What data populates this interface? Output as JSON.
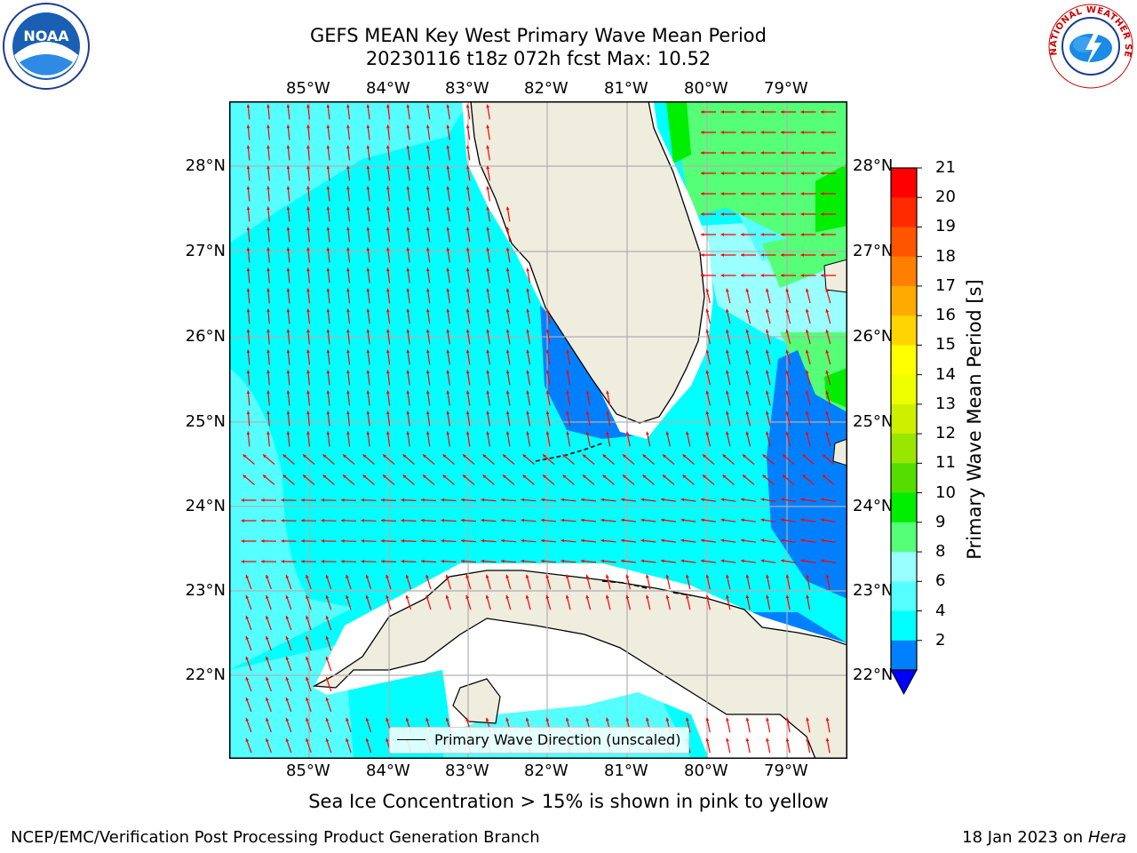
{
  "title": {
    "line1": "GEFS MEAN Key West Primary Wave Mean Period",
    "line2": "20230116 t18z 072h fcst   Max: 10.52"
  },
  "map": {
    "lon_labels": [
      "85°W",
      "84°W",
      "83°W",
      "82°W",
      "81°W",
      "80°W",
      "79°W"
    ],
    "lat_labels": [
      "28°N",
      "27°N",
      "26°N",
      "25°N",
      "24°N",
      "23°N",
      "22°N"
    ],
    "legend": "Primary Wave Direction (unscaled)",
    "colors": {
      "land": "#efedde",
      "ocean_main": "#00ffff",
      "ocean_light": "#55ffff",
      "ocean_lighter": "#99ffff",
      "blue": "#0080ff",
      "dark_blue": "#0000ff",
      "green_light": "#55ff77",
      "green": "#00ee00",
      "arrow": "#ff0000",
      "grid": "#b0b0b0"
    }
  },
  "colorbar": {
    "title": "Primary Wave Mean Period [s]",
    "ticks": [
      "21",
      "20",
      "19",
      "18",
      "17",
      "16",
      "15",
      "14",
      "13",
      "12",
      "11",
      "10",
      "9",
      "8",
      "6",
      "4",
      "2"
    ],
    "colors": [
      "#ff0000",
      "#ff2a00",
      "#ff5500",
      "#ff8000",
      "#ffaa00",
      "#ffd400",
      "#ffff00",
      "#eeff00",
      "#ccf000",
      "#99e600",
      "#55dd00",
      "#00ee00",
      "#55ff77",
      "#99ffff",
      "#55ffff",
      "#00ffff",
      "#0080ff"
    ],
    "under_color": "#0000ff"
  },
  "captions": {
    "sea_ice": "Sea Ice Concentration > 15% is shown in pink to yellow",
    "footer_left": "NCEP/EMC/Verification Post Processing Product Generation Branch",
    "footer_right_prefix": "18 Jan 2023 on ",
    "footer_right_host": "Hera"
  },
  "logos": {
    "noaa": "NOAA",
    "nws": "NATIONAL WEATHER SERVICE"
  }
}
